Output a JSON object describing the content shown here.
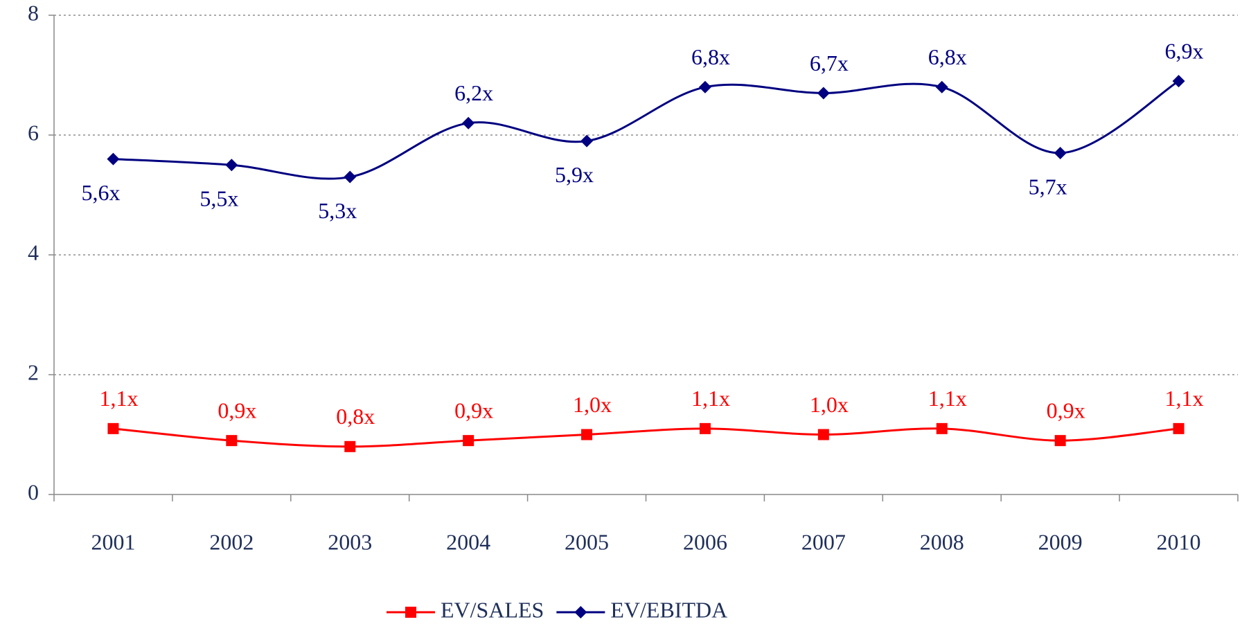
{
  "chart_data": {
    "type": "line",
    "categories": [
      "2001",
      "2002",
      "2003",
      "2004",
      "2005",
      "2006",
      "2007",
      "2008",
      "2009",
      "2010"
    ],
    "series": [
      {
        "name": "EV/SALES",
        "color": "#ff0000",
        "marker": "square",
        "values": [
          1.1,
          0.9,
          0.8,
          0.9,
          1.0,
          1.1,
          1.0,
          1.1,
          0.9,
          1.1
        ],
        "value_labels": [
          "1,1x",
          "0,9x",
          "0,8x",
          "0,9x",
          "1,0x",
          "1,1x",
          "1,0x",
          "1,1x",
          "0,9x",
          "1,1x"
        ]
      },
      {
        "name": "EV/EBITDA",
        "color": "#000080",
        "marker": "diamond",
        "values": [
          5.6,
          5.5,
          5.3,
          6.2,
          5.9,
          6.8,
          6.7,
          6.8,
          5.7,
          6.9
        ],
        "value_labels": [
          "5,6x",
          "5,5x",
          "5,3x",
          "6,2x",
          "5,9x",
          "6,8x",
          "6,7x",
          "6,8x",
          "5,7x",
          "6,9x"
        ]
      }
    ],
    "ylim": [
      0,
      8
    ],
    "yticks": [
      0,
      2,
      4,
      6,
      8
    ],
    "grid": true,
    "legend": "bottom"
  }
}
